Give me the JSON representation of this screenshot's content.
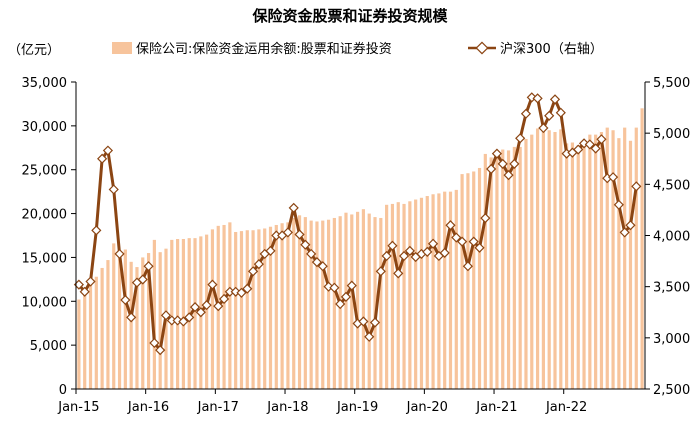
{
  "chart_data": {
    "type": "bar+line",
    "title": "保险资金股票和证券投资规模",
    "unit_left": "（亿元）",
    "legend_position": "top",
    "grid": false,
    "x_tick_labels": [
      "Jan-15",
      "Jan-16",
      "Jan-17",
      "Jan-18",
      "Jan-19",
      "Jan-20",
      "Jan-21",
      "Jan-22"
    ],
    "y_left": {
      "lim": [
        0,
        35000
      ],
      "ticks": [
        "0",
        "5,000",
        "10,000",
        "15,000",
        "20,000",
        "25,000",
        "30,000",
        "35,000"
      ]
    },
    "y_right": {
      "lim": [
        2500,
        5500
      ],
      "ticks": [
        "2,500",
        "3,000",
        "3,500",
        "4,000",
        "4,500",
        "5,000",
        "5,500"
      ]
    },
    "colors": {
      "bar": "#F7C49C",
      "line": "#8B4513",
      "marker_fill": "#ffffff"
    },
    "series": [
      {
        "name": "保险公司:保险资金运用余额:股票和证券投资",
        "axis": "left",
        "type": "bar",
        "start": "2015-01",
        "values": [
          10200,
          11000,
          12000,
          12800,
          13800,
          14700,
          16600,
          15800,
          15900,
          14500,
          13900,
          15000,
          15500,
          17000,
          15600,
          16000,
          17000,
          17100,
          17100,
          17200,
          17200,
          17400,
          17600,
          18200,
          18600,
          18700,
          19000,
          17900,
          18000,
          18100,
          18100,
          18200,
          18300,
          18500,
          18700,
          18900,
          19000,
          19500,
          19800,
          19600,
          19200,
          19100,
          19200,
          19300,
          19500,
          19700,
          20100,
          19900,
          20200,
          20500,
          20000,
          19600,
          19500,
          21000,
          21100,
          21300,
          21100,
          21400,
          21600,
          21800,
          22000,
          22200,
          22300,
          22500,
          22500,
          22700,
          24500,
          24600,
          24800,
          25200,
          26800,
          26400,
          27000,
          27300,
          27200,
          27600,
          27600,
          28500,
          29000,
          29700,
          29900,
          29500,
          29300,
          29600,
          28000,
          28100,
          27800,
          28300,
          29000,
          29000,
          29300,
          29800,
          29500,
          28600,
          29800,
          28300,
          29800,
          32000
        ]
      },
      {
        "name": "沪深300（右轴）",
        "axis": "right",
        "type": "line",
        "start": "2015-01",
        "values": [
          3520,
          3450,
          3550,
          4050,
          4750,
          4830,
          4450,
          3820,
          3370,
          3200,
          3540,
          3570,
          3700,
          2950,
          2880,
          3220,
          3170,
          3170,
          3160,
          3200,
          3300,
          3250,
          3320,
          3520,
          3310,
          3380,
          3450,
          3450,
          3440,
          3480,
          3650,
          3720,
          3820,
          3850,
          4000,
          4000,
          4030,
          4270,
          4010,
          3910,
          3820,
          3740,
          3700,
          3500,
          3490,
          3330,
          3400,
          3510,
          3140,
          3160,
          3010,
          3150,
          3650,
          3800,
          3900,
          3630,
          3800,
          3850,
          3790,
          3820,
          3840,
          3920,
          3800,
          3830,
          4100,
          3980,
          3940,
          3700,
          3940,
          3880,
          4170,
          4650,
          4800,
          4700,
          4590,
          4700,
          4950,
          5190,
          5350,
          5340,
          5050,
          5170,
          5330,
          5200,
          4800,
          4810,
          4840,
          4900,
          4890,
          4850,
          4940,
          4560,
          4570,
          4300,
          4030,
          4100,
          4480
        ]
      }
    ]
  }
}
